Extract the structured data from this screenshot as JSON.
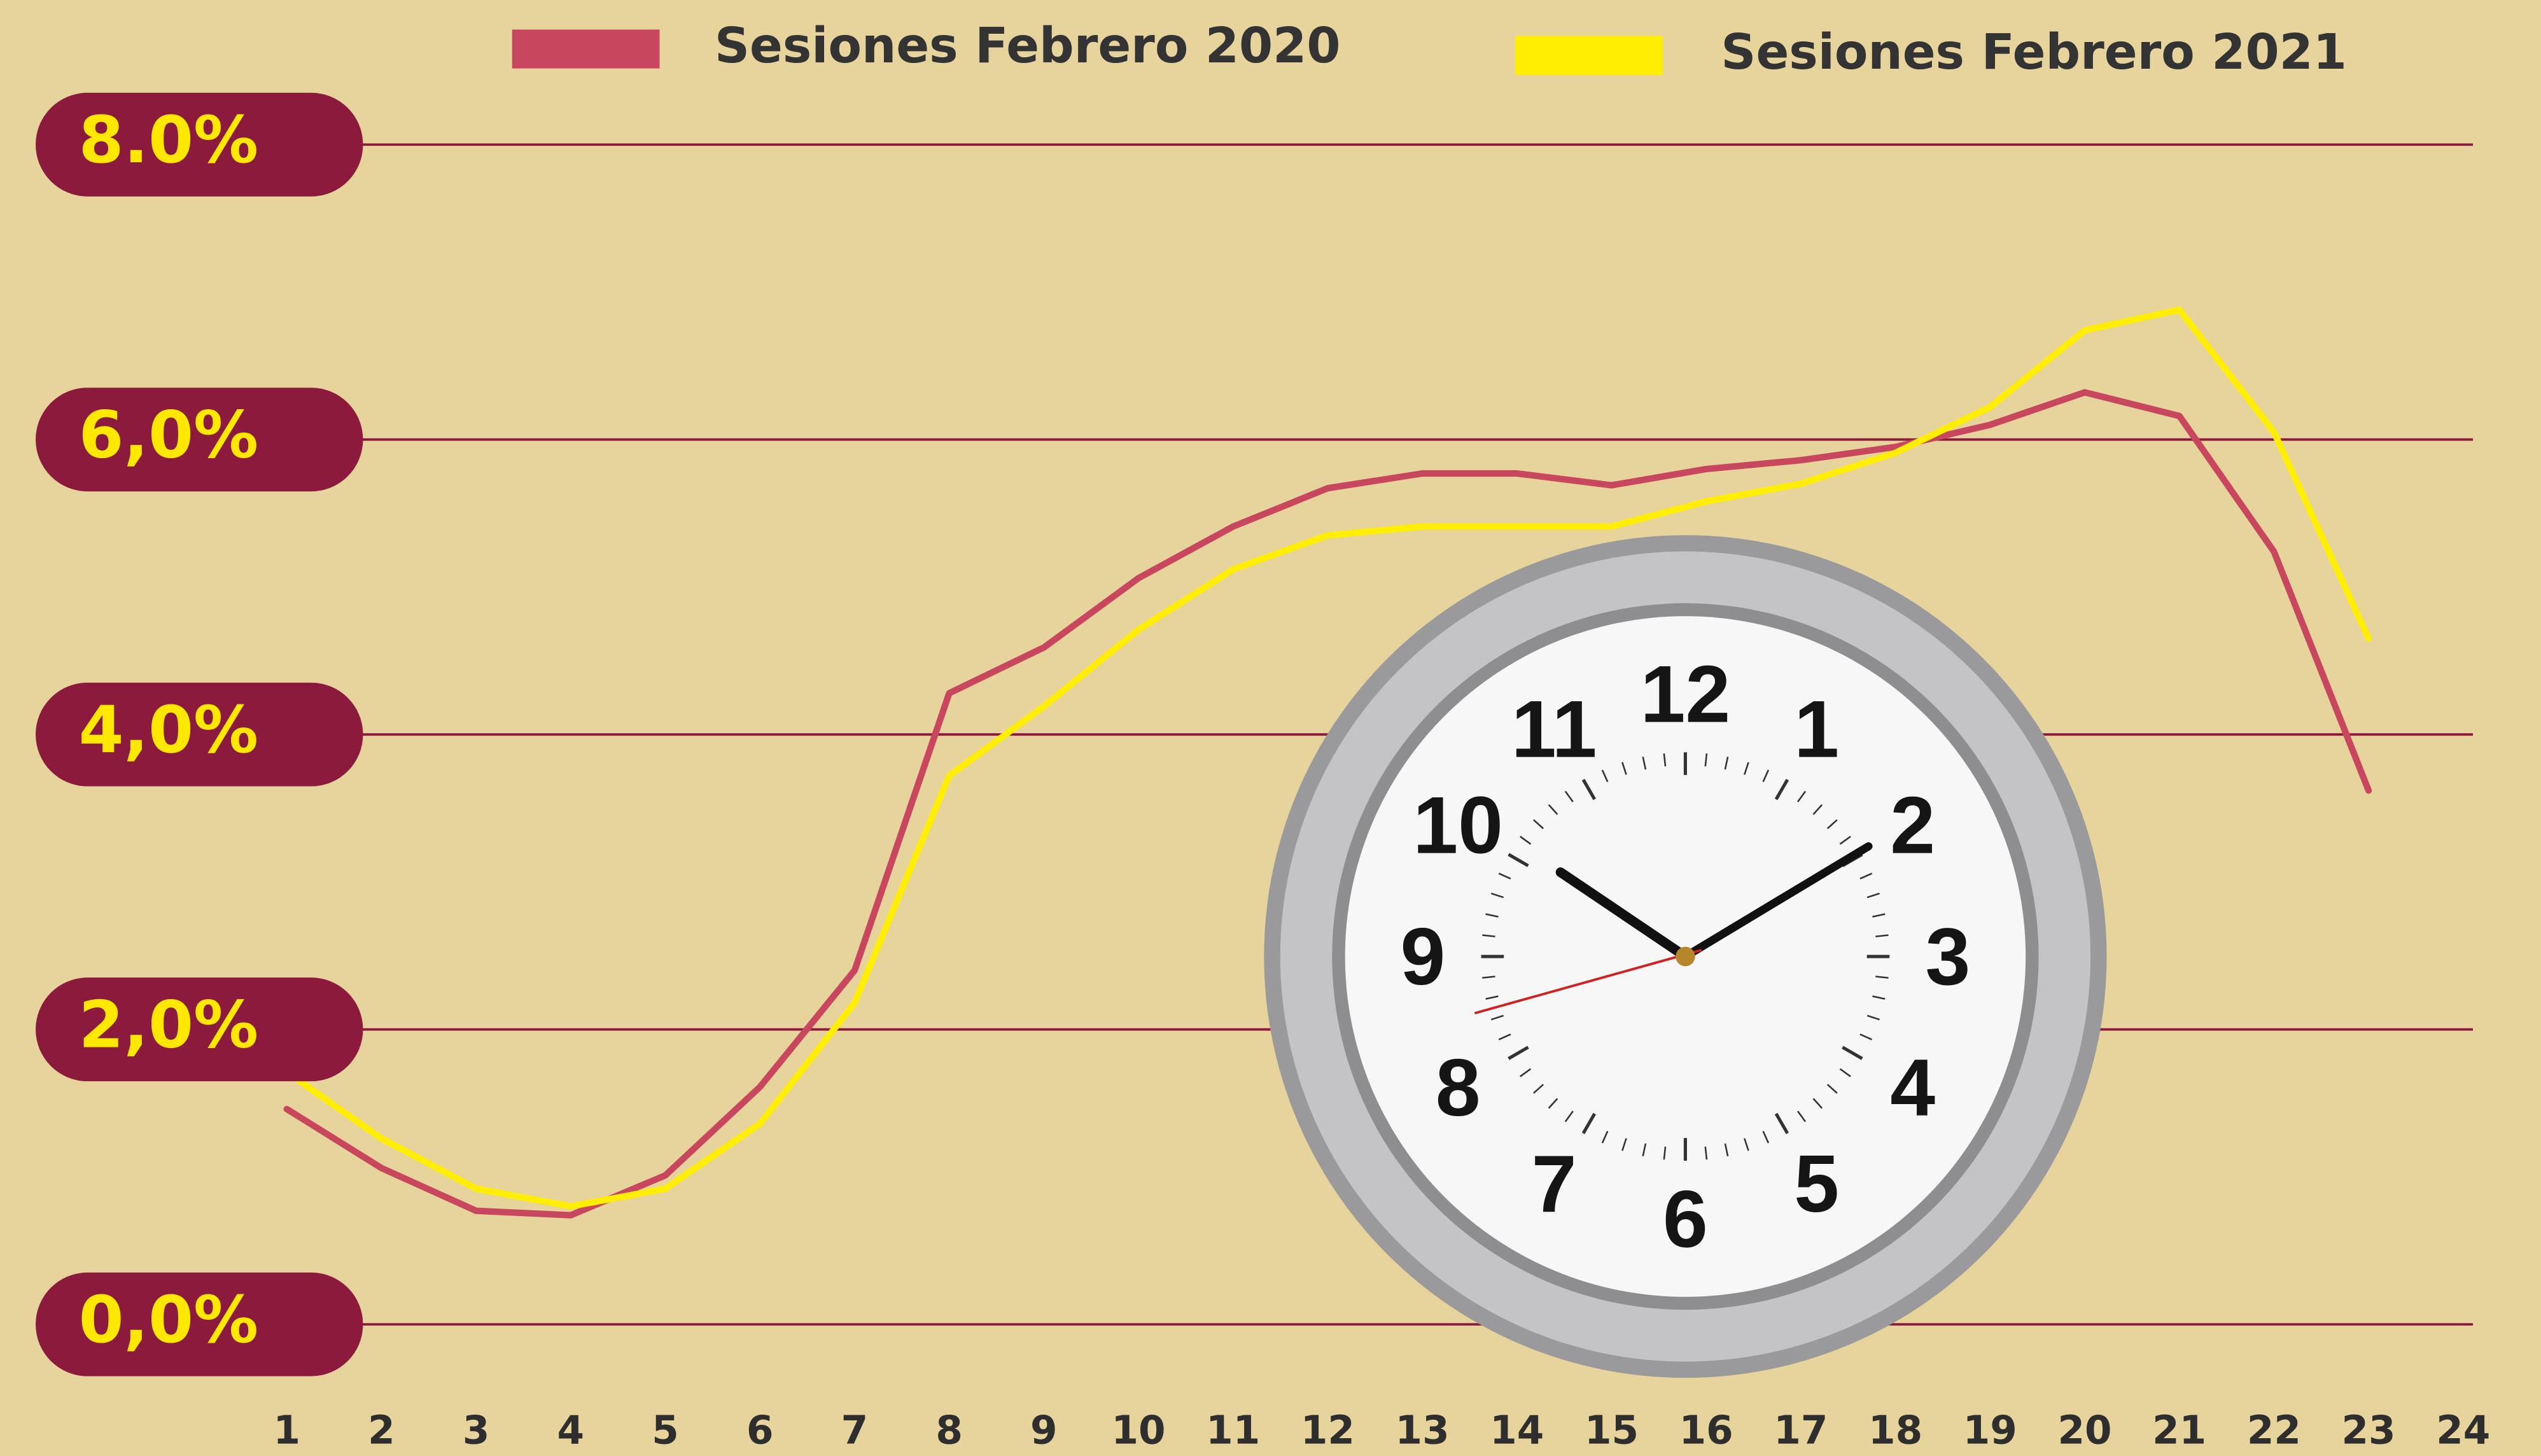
{
  "chart_data": {
    "type": "line",
    "x": [
      "1",
      "2",
      "3",
      "4",
      "5",
      "6",
      "7",
      "8",
      "9",
      "10",
      "11",
      "12",
      "13",
      "14",
      "15",
      "16",
      "17",
      "18",
      "19",
      "20",
      "21",
      "22",
      "23",
      "24"
    ],
    "series": [
      {
        "name": "Sesiones Febrero 2020",
        "color": "#c8475f",
        "values": [
          1.46,
          1.06,
          0.77,
          0.74,
          1.01,
          1.61,
          2.4,
          4.28,
          4.59,
          5.06,
          5.41,
          5.67,
          5.77,
          5.77,
          5.69,
          5.8,
          5.86,
          5.95,
          6.1,
          6.32,
          6.16,
          5.24,
          3.62,
          null
        ]
      },
      {
        "name": "Sesiones Febrero 2021",
        "color": "#ffee00",
        "values": [
          1.71,
          1.26,
          0.92,
          0.8,
          0.92,
          1.36,
          2.18,
          3.72,
          4.19,
          4.71,
          5.12,
          5.35,
          5.41,
          5.41,
          5.41,
          5.58,
          5.7,
          5.91,
          6.22,
          6.74,
          6.88,
          6.05,
          4.65,
          null
        ]
      }
    ],
    "ylim": [
      0,
      8
    ],
    "yticks": [
      {
        "value": 0,
        "label": "0,0%"
      },
      {
        "value": 2,
        "label": "2,0%"
      },
      {
        "value": 4,
        "label": "4,0%"
      },
      {
        "value": 6,
        "label": "6,0%"
      },
      {
        "value": 8,
        "label": "8.0%"
      }
    ],
    "grid": true,
    "legend": "top"
  },
  "clock_numerals": [
    "12",
    "1",
    "2",
    "3",
    "4",
    "5",
    "6",
    "7",
    "8",
    "9",
    "10",
    "11"
  ]
}
